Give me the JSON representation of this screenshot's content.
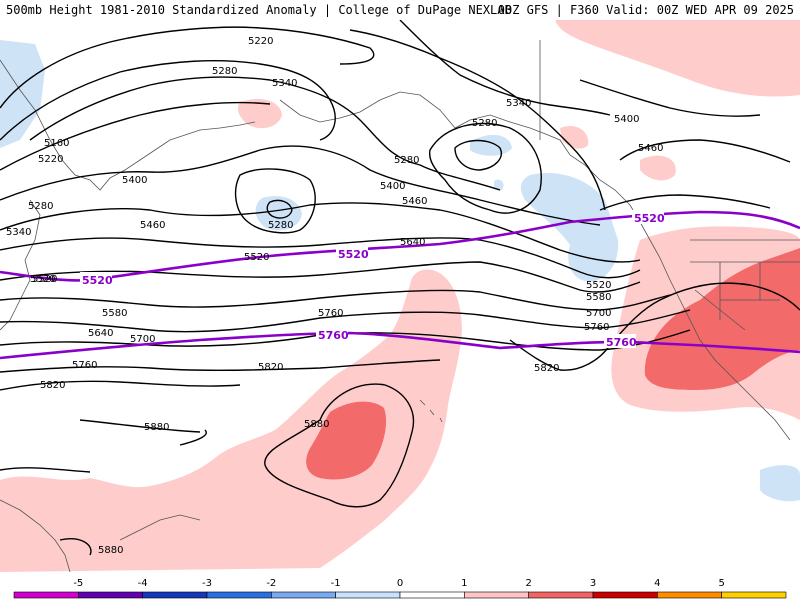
{
  "header": {
    "left": "500mb Height 1981-2010 Standardized Anomaly | College of DuPage NEXLAB",
    "right": "00Z GFS | F360 Valid: 00Z WED APR 09 2025"
  },
  "contour_labels": [
    {
      "text": "5220"
    },
    {
      "text": "5280"
    },
    {
      "text": "5340"
    },
    {
      "text": "5160"
    },
    {
      "text": "5220"
    },
    {
      "text": "5400"
    },
    {
      "text": "5280"
    },
    {
      "text": "5340"
    },
    {
      "text": "5460"
    },
    {
      "text": "5520"
    },
    {
      "text": "5520"
    },
    {
      "text": "5580"
    },
    {
      "text": "5640"
    },
    {
      "text": "5700"
    },
    {
      "text": "5760"
    },
    {
      "text": "5820"
    },
    {
      "text": "5820"
    },
    {
      "text": "5880"
    },
    {
      "text": "5880"
    },
    {
      "text": "5880"
    },
    {
      "text": "5280"
    },
    {
      "text": "5280"
    },
    {
      "text": "5340"
    },
    {
      "text": "5400"
    },
    {
      "text": "5460"
    },
    {
      "text": "5520"
    },
    {
      "text": "5640"
    },
    {
      "text": "5580"
    },
    {
      "text": "5700"
    },
    {
      "text": "5760"
    },
    {
      "text": "5820"
    },
    {
      "text": "5400"
    },
    {
      "text": "5460"
    },
    {
      "text": "5520"
    },
    {
      "text": "5280"
    },
    {
      "text": "5760"
    }
  ],
  "highlight_labels": [
    {
      "text": "5520"
    },
    {
      "text": "5520"
    },
    {
      "text": "5520"
    },
    {
      "text": "5760"
    },
    {
      "text": "5760"
    }
  ],
  "colorbar": {
    "ticks": [
      "-5",
      "-4",
      "-3",
      "-2",
      "-1",
      "0",
      "1",
      "2",
      "3",
      "4",
      "5"
    ],
    "colors": [
      "#d000d0",
      "#6000b0",
      "#1438b8",
      "#2870e0",
      "#78aaf0",
      "#c8e0fa",
      "#ffffff",
      "#ffc4c4",
      "#f06464",
      "#c80000",
      "#ff8c00",
      "#ffd000"
    ]
  },
  "anomaly_colors": {
    "weak_positive": "#ffcccc",
    "strong_positive": "#f26a6a",
    "weak_negative": "#cfe3f7"
  }
}
